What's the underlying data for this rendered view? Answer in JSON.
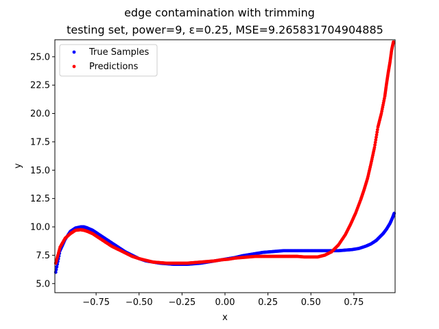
{
  "chart_data": {
    "type": "scatter",
    "title": "edge contamination with trimming",
    "subtitle": "testing set, power=9, ε=0.25, MSE=9.265831704904885",
    "xlabel": "x",
    "ylabel": "y",
    "xlim": [
      -0.99,
      0.99
    ],
    "ylim": [
      4.2,
      26.5
    ],
    "xticks": [
      -0.75,
      -0.5,
      -0.25,
      0.0,
      0.25,
      0.5,
      0.75
    ],
    "xtick_labels": [
      "−0.75",
      "−0.50",
      "−0.25",
      "0.00",
      "0.25",
      "0.50",
      "0.75"
    ],
    "yticks": [
      5.0,
      7.5,
      10.0,
      12.5,
      15.0,
      17.5,
      20.0,
      22.5,
      25.0
    ],
    "ytick_labels": [
      "5.0",
      "7.5",
      "10.0",
      "12.5",
      "15.0",
      "17.5",
      "20.0",
      "22.5",
      "25.0"
    ],
    "grid": false,
    "legend_position": "top-left",
    "series": [
      {
        "name": "True Samples",
        "color": "#0000ff",
        "x": [
          -0.985,
          -0.96,
          -0.93,
          -0.9,
          -0.87,
          -0.84,
          -0.82,
          -0.8,
          -0.77,
          -0.74,
          -0.7,
          -0.66,
          -0.62,
          -0.58,
          -0.54,
          -0.5,
          -0.46,
          -0.42,
          -0.38,
          -0.34,
          -0.3,
          -0.26,
          -0.22,
          -0.18,
          -0.14,
          -0.1,
          -0.06,
          -0.02,
          0.02,
          0.06,
          0.1,
          0.14,
          0.18,
          0.22,
          0.26,
          0.3,
          0.34,
          0.38,
          0.42,
          0.46,
          0.5,
          0.54,
          0.58,
          0.62,
          0.66,
          0.7,
          0.74,
          0.78,
          0.82,
          0.85,
          0.88,
          0.9,
          0.92,
          0.94,
          0.96,
          0.975,
          0.985
        ],
        "y": [
          6.0,
          7.9,
          8.9,
          9.6,
          9.9,
          10.0,
          10.0,
          9.9,
          9.7,
          9.4,
          9.0,
          8.6,
          8.2,
          7.8,
          7.5,
          7.2,
          7.0,
          6.9,
          6.8,
          6.75,
          6.7,
          6.7,
          6.7,
          6.75,
          6.8,
          6.9,
          7.0,
          7.1,
          7.2,
          7.3,
          7.45,
          7.55,
          7.65,
          7.75,
          7.8,
          7.85,
          7.9,
          7.9,
          7.9,
          7.9,
          7.9,
          7.9,
          7.9,
          7.9,
          7.9,
          7.95,
          8.0,
          8.1,
          8.3,
          8.5,
          8.8,
          9.1,
          9.4,
          9.8,
          10.3,
          10.8,
          11.2
        ]
      },
      {
        "name": "Predictions",
        "color": "#ff0000",
        "x": [
          -0.985,
          -0.96,
          -0.93,
          -0.9,
          -0.87,
          -0.84,
          -0.82,
          -0.8,
          -0.77,
          -0.74,
          -0.7,
          -0.66,
          -0.62,
          -0.58,
          -0.54,
          -0.5,
          -0.46,
          -0.42,
          -0.38,
          -0.34,
          -0.3,
          -0.26,
          -0.22,
          -0.18,
          -0.14,
          -0.1,
          -0.06,
          -0.02,
          0.02,
          0.06,
          0.1,
          0.14,
          0.18,
          0.22,
          0.26,
          0.3,
          0.34,
          0.38,
          0.42,
          0.46,
          0.5,
          0.54,
          0.58,
          0.62,
          0.66,
          0.7,
          0.73,
          0.76,
          0.79,
          0.81,
          0.83,
          0.85,
          0.87,
          0.89,
          0.91,
          0.93,
          0.94,
          0.95,
          0.96,
          0.97,
          0.98
        ],
        "y": [
          6.8,
          8.2,
          9.0,
          9.4,
          9.7,
          9.75,
          9.7,
          9.6,
          9.4,
          9.1,
          8.7,
          8.3,
          8.0,
          7.7,
          7.4,
          7.2,
          7.05,
          6.9,
          6.85,
          6.8,
          6.8,
          6.8,
          6.8,
          6.85,
          6.9,
          6.95,
          7.0,
          7.1,
          7.15,
          7.25,
          7.3,
          7.35,
          7.4,
          7.4,
          7.4,
          7.4,
          7.4,
          7.4,
          7.4,
          7.35,
          7.35,
          7.35,
          7.5,
          7.8,
          8.4,
          9.3,
          10.2,
          11.2,
          12.4,
          13.3,
          14.3,
          15.6,
          17.0,
          18.8,
          20.0,
          21.5,
          22.6,
          23.6,
          24.5,
          25.6,
          26.3
        ]
      }
    ]
  }
}
